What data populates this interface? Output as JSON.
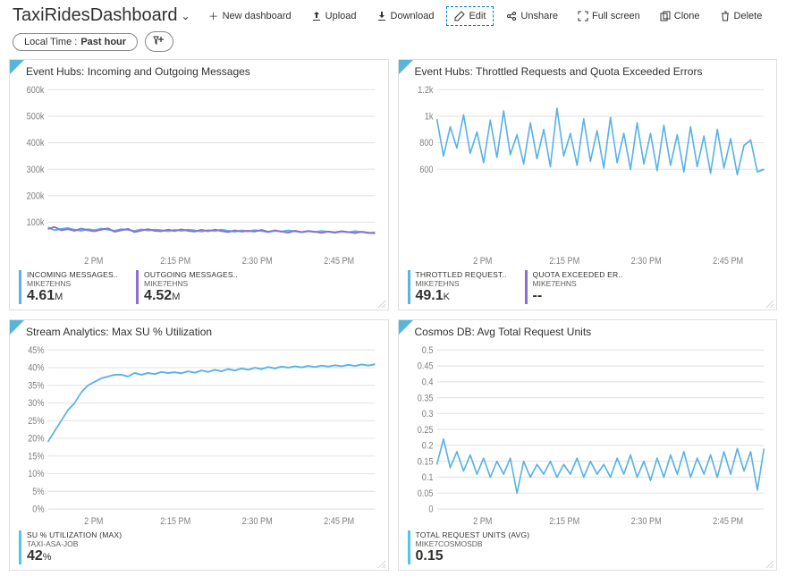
{
  "header": {
    "title": "TaxiRidesDashboard",
    "actions": {
      "new": "New dashboard",
      "upload": "Upload",
      "download": "Download",
      "edit": "Edit",
      "unshare": "Unshare",
      "fullscreen": "Full screen",
      "clone": "Clone",
      "delete": "Delete"
    }
  },
  "filter": {
    "prefix": "Local Time :",
    "value": "Past hour"
  },
  "colors": {
    "grid": "#e5e5e5",
    "axis_text": "#808080",
    "tile_border": "#e1dfdd",
    "corner": "#59b4d9",
    "series_blue": "#5ab2e6",
    "series_purple": "#8b6fd1",
    "series_cyan": "#4fc7e8"
  },
  "tiles": [
    {
      "id": "eh-msgs",
      "title": "Event Hubs: Incoming and Outgoing Messages",
      "y_axis": {
        "min": 0,
        "max": 600000,
        "ticks": [
          "100k",
          "200k",
          "300k",
          "400k",
          "500k",
          "600k"
        ]
      },
      "x_ticks": [
        "2 PM",
        "2:15 PM",
        "2:30 PM",
        "2:45 PM"
      ],
      "series": [
        {
          "name": "incoming",
          "color": "#5ab2e6",
          "points": [
            80,
            70,
            75,
            78,
            72,
            68,
            74,
            70,
            76,
            72,
            68,
            74,
            71,
            67,
            73,
            69,
            72,
            70,
            66,
            71,
            68,
            72,
            69,
            65,
            70,
            67,
            72,
            68,
            64,
            69,
            66,
            70,
            67,
            63,
            68,
            65,
            69,
            66,
            62,
            66,
            63,
            67,
            64,
            60,
            65,
            62,
            66,
            63,
            59,
            62
          ],
          "y_scale": 1000
        },
        {
          "name": "outgoing",
          "color": "#8b6fd1",
          "points": [
            75,
            82,
            70,
            74,
            68,
            76,
            70,
            66,
            72,
            77,
            64,
            70,
            75,
            63,
            69,
            74,
            68,
            66,
            72,
            67,
            73,
            68,
            65,
            71,
            66,
            72,
            67,
            63,
            69,
            65,
            68,
            65,
            71,
            64,
            69,
            65,
            61,
            68,
            63,
            67,
            64,
            60,
            65,
            62,
            66,
            63,
            59,
            64,
            61,
            58
          ],
          "y_scale": 1000
        }
      ],
      "metrics": [
        {
          "label": "INCOMING MESSAGES..",
          "sub": "MIKE7EHNS",
          "value": "4.61",
          "unit": "M",
          "bar_color": "#5ab2e6"
        },
        {
          "label": "OUTGOING MESSAGES..",
          "sub": "MIKE7EHNS",
          "value": "4.52",
          "unit": "M",
          "bar_color": "#8b6fd1"
        }
      ]
    },
    {
      "id": "eh-throttle",
      "title": "Event Hubs: Throttled Requests and Quota Exceeded Errors",
      "y_axis": {
        "min": 0,
        "max": 1200,
        "ticks": [
          "600",
          "800",
          "1k",
          "1.2k"
        ],
        "tick_vals": [
          600,
          800,
          1000,
          1200
        ]
      },
      "x_ticks": [
        "2 PM",
        "2:15 PM",
        "2:30 PM",
        "2:45 PM"
      ],
      "series": [
        {
          "name": "throttled",
          "color": "#5ab2e6",
          "points": [
            980,
            700,
            920,
            760,
            1010,
            720,
            880,
            650,
            970,
            690,
            1040,
            710,
            860,
            640,
            950,
            680,
            900,
            620,
            1060,
            700,
            870,
            630,
            980,
            660,
            890,
            610,
            990,
            650,
            870,
            600,
            950,
            640,
            870,
            590,
            930,
            630,
            860,
            580,
            920,
            620,
            850,
            570,
            900,
            610,
            830,
            560,
            780,
            820,
            580,
            600
          ],
          "y_scale": 1
        }
      ],
      "metrics": [
        {
          "label": "THROTTLED REQUEST..",
          "sub": "MIKE7EHNS",
          "value": "49.1",
          "unit": "K",
          "bar_color": "#5ab2e6"
        },
        {
          "label": "QUOTA EXCEEDED ER..",
          "sub": "MIKE7EHNS",
          "value": "--",
          "unit": "",
          "bar_color": "#8b6fd1"
        }
      ]
    },
    {
      "id": "sa-su",
      "title": "Stream Analytics: Max SU % Utilization",
      "y_axis": {
        "min": 0,
        "max": 45,
        "ticks": [
          "0%",
          "5%",
          "10%",
          "15%",
          "20%",
          "25%",
          "30%",
          "35%",
          "40%",
          "45%"
        ]
      },
      "x_ticks": [
        "2 PM",
        "2:15 PM",
        "2:30 PM",
        "2:45 PM"
      ],
      "series": [
        {
          "name": "su",
          "color": "#5ab2e6",
          "points": [
            19,
            22,
            25,
            28,
            30,
            33,
            35,
            36,
            37,
            37.5,
            38,
            38,
            37.5,
            38.5,
            38,
            38.5,
            38.2,
            38.8,
            38.5,
            38.7,
            38.4,
            39,
            38.6,
            39.2,
            38.8,
            39.4,
            39,
            39.6,
            39.2,
            39.8,
            39.4,
            40,
            39.6,
            40.2,
            39.8,
            40.3,
            40,
            40.4,
            40.1,
            40.5,
            40.2,
            40.6,
            40.3,
            40.7,
            40.4,
            40.8,
            40.5,
            40.9,
            40.6,
            41
          ],
          "y_scale": 1
        }
      ],
      "metrics": [
        {
          "label": "SU % UTILIZATION (MAX)",
          "sub": "TAXI-ASA-JOB",
          "value": "42",
          "unit": "%",
          "bar_color": "#4fc7e8"
        }
      ]
    },
    {
      "id": "cosmos-ru",
      "title": "Cosmos DB: Avg Total Request Units",
      "y_axis": {
        "min": 0,
        "max": 0.5,
        "ticks": [
          "0",
          "0.05",
          "0.1",
          "0.15",
          "0.2",
          "0.25",
          "0.3",
          "0.35",
          "0.4",
          "0.45",
          "0.5"
        ]
      },
      "x_ticks": [
        "2 PM",
        "2:15 PM",
        "2:30 PM",
        "2:45 PM"
      ],
      "series": [
        {
          "name": "ru",
          "color": "#5ab2e6",
          "points": [
            0.14,
            0.22,
            0.13,
            0.18,
            0.12,
            0.17,
            0.11,
            0.16,
            0.1,
            0.15,
            0.11,
            0.16,
            0.05,
            0.15,
            0.1,
            0.14,
            0.11,
            0.15,
            0.1,
            0.14,
            0.11,
            0.16,
            0.1,
            0.15,
            0.11,
            0.14,
            0.1,
            0.16,
            0.11,
            0.17,
            0.1,
            0.15,
            0.09,
            0.16,
            0.1,
            0.17,
            0.11,
            0.18,
            0.1,
            0.16,
            0.11,
            0.17,
            0.1,
            0.18,
            0.11,
            0.19,
            0.12,
            0.18,
            0.06,
            0.19
          ],
          "y_scale": 1
        }
      ],
      "metrics": [
        {
          "label": "TOTAL REQUEST UNITS (AVG)",
          "sub": "MIKE7COSMOSDB",
          "value": "0.15",
          "unit": "",
          "bar_color": "#4fc7e8"
        }
      ]
    }
  ]
}
